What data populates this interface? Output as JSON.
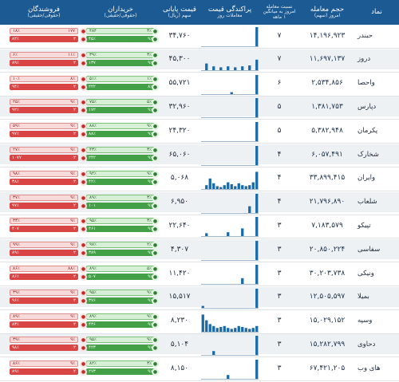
{
  "header": {
    "name": "نماد",
    "volume": "حجم معامله",
    "volume_sub": "امروز (سهم)",
    "ratio": "نسبت معامله",
    "ratio_sub1": "امروز به میانگین",
    "ratio_sub2": "۱ ماهه",
    "hist": "پراکندگی قیمت",
    "hist_sub": "معاملات روز",
    "price": "قیمت پایانی",
    "price_sub": "سهم (ریال)",
    "buyers": "خریداران",
    "buyers_sub": "(حقوقی/حقیقی)",
    "sellers": "فروشندگان",
    "sellers_sub": "(حقوقی/حقیقی)"
  },
  "colors": {
    "header": "#1b5a93",
    "buy": "#43a047",
    "sell": "#d94545",
    "hist": "#1b6aa8"
  },
  "rows": [
    {
      "name": "حبندر",
      "volume": "۱۴,۱۹۶,۹۲۳",
      "ratio": "۷",
      "price": "۳۴,۷۶۰",
      "buy_top": [
        "۳٪",
        "۴۸۴"
      ],
      "buy_bot": [
        "۹٪",
        "۴۵٪"
      ],
      "sell_top": [
        "۱۷۷",
        "۱۸٪"
      ],
      "sell_bot": [
        "۲",
        "۸۲٪"
      ],
      "hist": [
        0,
        0,
        0,
        0,
        0,
        0,
        0,
        0,
        0,
        0,
        0,
        0,
        0,
        0,
        0,
        1
      ]
    },
    {
      "name": "دروز",
      "volume": "۱۱,۶۹۷,۱۳۷",
      "ratio": "۷",
      "price": "۴۵,۳۰۰",
      "buy_top": [
        "۳٪",
        "۳۹٪"
      ],
      "buy_bot": [
        "۹٪",
        "۱۳۷"
      ],
      "sell_top": [
        "۱۱٪",
        "۶٪"
      ],
      "sell_bot": [
        "۲",
        "۸۹٪"
      ],
      "hist": [
        0,
        0.35,
        0,
        0.2,
        0,
        0.15,
        0,
        0.2,
        0,
        0.15,
        0,
        0.2,
        0,
        0.25,
        0,
        0.55
      ]
    },
    {
      "name": "واحصا",
      "volume": "۲,۵۳۴,۸۵۶",
      "ratio": "۶",
      "price": "۵۵,۷۲۱",
      "buy_top": [
        "۱٪",
        "۵۱٪"
      ],
      "buy_bot": [
        "۸٪",
        "۲۲۲"
      ],
      "sell_top": [
        "۸٪",
        "۱۰٪"
      ],
      "sell_bot": [
        "۲",
        "۹۴٪"
      ],
      "hist": [
        0,
        0,
        0,
        0,
        0,
        0,
        0,
        0,
        0.1,
        0,
        0,
        0,
        0,
        0,
        0,
        1
      ]
    },
    {
      "name": "دپارس",
      "volume": "۱,۳۸۱,۷۵۳",
      "ratio": "۵",
      "price": "۳۲,۹۶۰",
      "buy_top": [
        "۵٪",
        "۷۵٪"
      ],
      "buy_bot": [
        "۹٪",
        "۱۷۲"
      ],
      "sell_top": [
        "۹٪",
        "۲۵٪"
      ],
      "sell_bot": [
        "۲",
        "۹۲٪"
      ],
      "hist": [
        0,
        0,
        0,
        0,
        0,
        0,
        0,
        0,
        0,
        0,
        0,
        0,
        0,
        0,
        0,
        1
      ]
    },
    {
      "name": "پکرمان",
      "volume": "۵,۳۸۲,۹۴۸",
      "ratio": "۵",
      "price": "۲۴,۳۲۰",
      "buy_top": [
        "۹٪",
        "۸۸٪"
      ],
      "buy_bot": [
        "۹٪",
        "۸۸٪"
      ],
      "sell_top": [
        "۹٪",
        "۵۹٪"
      ],
      "sell_bot": [
        "۲",
        "۹۷٪"
      ],
      "hist": [
        0,
        0,
        0,
        0,
        0,
        0,
        0,
        0,
        0,
        0,
        0,
        0,
        0,
        0,
        0,
        1
      ]
    },
    {
      "name": "شخارک",
      "volume": "۶,۰۵۷,۴۹۱",
      "ratio": "۴",
      "price": "۶۵,۰۶۰",
      "buy_top": [
        "۳٪",
        "۴۳٪"
      ],
      "buy_bot": [
        "۹٪",
        "۲۴۲"
      ],
      "sell_top": [
        "۹٪",
        "۲۷٪"
      ],
      "sell_bot": [
        "۲",
        "۱۰۷۷"
      ],
      "hist": [
        0,
        0,
        0,
        0,
        0,
        0,
        0,
        0,
        0,
        0,
        0,
        0,
        0,
        0,
        0,
        1
      ]
    },
    {
      "name": "وایران",
      "volume": "۳۳,۸۹۹,۴۱۵",
      "ratio": "۴",
      "price": "۵,۰۶۸",
      "buy_top": [
        "۹٪",
        "۹۲٪"
      ],
      "buy_bot": [
        "۹٪",
        "۴۲٪"
      ],
      "sell_top": [
        "۹٪",
        "۹۸٪"
      ],
      "sell_bot": [
        "۲",
        "۳۸٪"
      ],
      "hist": [
        0,
        0.2,
        0.55,
        0.3,
        0.15,
        0.1,
        0.2,
        0.35,
        0.25,
        0.15,
        0.3,
        0.2,
        0.15,
        0.2,
        0.35,
        0.9
      ]
    },
    {
      "name": "شلعاب",
      "volume": "۲۱,۷۹۶,۸۹۰",
      "ratio": "۴",
      "price": "۶,۹۵۰",
      "buy_top": [
        "۳٪",
        "۸۹٪"
      ],
      "buy_bot": [
        "۹٪",
        "۱۰۱"
      ],
      "sell_top": [
        "۹٪",
        "۳۷٪"
      ],
      "sell_bot": [
        "۲",
        "۹۷٪"
      ],
      "hist": [
        0,
        0,
        0,
        0,
        0,
        0,
        0,
        0,
        0,
        0,
        0,
        0,
        0,
        0.35,
        0,
        1
      ]
    },
    {
      "name": "تپیکو",
      "volume": "۷,۱۸۳,۵۷۹",
      "ratio": "۳",
      "price": "۲۲,۶۴۰",
      "buy_top": [
        "۳٪",
        "۹۵٪"
      ],
      "buy_bot": [
        "۹٪",
        "۴۶۱"
      ],
      "sell_top": [
        "۹٪",
        "۳۳٪"
      ],
      "sell_bot": [
        "۲",
        "۴۰۷"
      ],
      "hist": [
        0,
        0.15,
        0,
        0,
        0,
        0,
        0,
        0.2,
        0,
        0,
        0,
        0.4,
        0,
        0,
        0,
        1
      ]
    },
    {
      "name": "سفاسی",
      "volume": "۲۰,۸۵۰,۲۲۴",
      "ratio": "۳",
      "price": "۴,۳۰۷",
      "buy_top": [
        "۲٪",
        "۹۷٪"
      ],
      "buy_bot": [
        "۹٪",
        "۳۸۹"
      ],
      "sell_top": [
        "۹٪",
        "۹۹٪"
      ],
      "sell_bot": [
        "۲",
        "۸۹٪"
      ],
      "hist": [
        0,
        0,
        0,
        0,
        0,
        0,
        0,
        0,
        0,
        0,
        0,
        0,
        0,
        0,
        0,
        1
      ]
    },
    {
      "name": "ونیکی",
      "volume": "۳۰,۲۰۳,۷۳۸",
      "ratio": "۳",
      "price": "۱۱,۴۲۰",
      "buy_top": [
        "۵٪",
        "۸۹٪"
      ],
      "buy_bot": [
        "۹٪",
        "۵۰۷"
      ],
      "sell_top": [
        "۸۸٪",
        "۸۶٪"
      ],
      "sell_bot": [
        "۲",
        "۸۶٪"
      ],
      "hist": [
        0,
        0,
        0,
        0,
        0,
        0,
        0,
        0,
        0,
        0,
        0,
        0.3,
        0,
        0,
        0,
        1
      ]
    },
    {
      "name": "بمیلا",
      "volume": "۱۲,۵۰۵,۵۹۷",
      "ratio": "۳",
      "price": "۱۵,۵۱۷",
      "buy_top": [
        "۹٪",
        "۹۵٪"
      ],
      "buy_bot": [
        "۹٪",
        "۳۷۶"
      ],
      "sell_top": [
        "۹٪",
        "۳۹٪"
      ],
      "sell_bot": [
        "۲",
        "۹۶٪"
      ],
      "hist": [
        0.1,
        0,
        0,
        0,
        0,
        0,
        0,
        0,
        0,
        0,
        0,
        0,
        0,
        0,
        0,
        1
      ]
    },
    {
      "name": "وسپه",
      "volume": "۱۵,۰۲۹,۱۵۲",
      "ratio": "۳",
      "price": "۸,۲۳۰",
      "buy_top": [
        "۹٪",
        "۸۹٪"
      ],
      "buy_bot": [
        "۹٪",
        "۴۳۶"
      ],
      "sell_top": [
        "۹٪",
        "۸۹٪"
      ],
      "sell_bot": [
        "۲",
        "۸۳٪"
      ],
      "hist": [
        0.9,
        0.6,
        0.4,
        0.3,
        0.2,
        0.25,
        0.3,
        0.2,
        0.15,
        0.2,
        0.3,
        0.25,
        0.2,
        0.15,
        0.2,
        0.3
      ]
    },
    {
      "name": "دحاوی",
      "volume": "۱۵,۲۸۲,۷۹۹",
      "ratio": "۳",
      "price": "۵,۱۰۴",
      "buy_top": [
        "۹٪",
        "۹۵٪"
      ],
      "buy_bot": [
        "۹٪",
        "۴۲۳"
      ],
      "sell_top": [
        "۹٪",
        "۳۹٪"
      ],
      "sell_bot": [
        "۲",
        "۹۸٪"
      ],
      "hist": [
        0,
        0,
        0,
        0.2,
        0,
        0,
        0,
        0,
        0,
        0,
        0,
        0,
        0,
        0,
        0,
        1
      ]
    },
    {
      "name": "های وب",
      "volume": "۶۷,۴۲۱,۲۰۵",
      "ratio": "۳",
      "price": "۸,۱۵۰",
      "buy_top": [
        "۳٪",
        "۸۲٪"
      ],
      "buy_bot": [
        "۹٪",
        "۲۷۳"
      ],
      "sell_top": [
        "۹٪",
        "۸۶٪"
      ],
      "sell_bot": [
        "۲",
        "۸۹٪"
      ],
      "hist": [
        0,
        0,
        0,
        0,
        0,
        0,
        0,
        0.2,
        0,
        0,
        0,
        0,
        0,
        0,
        0,
        1
      ]
    }
  ]
}
